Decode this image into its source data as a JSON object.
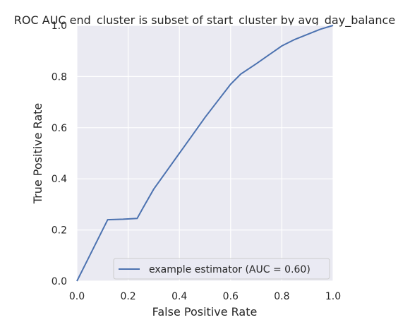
{
  "chart_data": {
    "type": "line",
    "title": "ROC AUC end_cluster is subset of start_cluster by avg_day_balance",
    "xlabel": "False Positive Rate",
    "ylabel": "True Positive Rate",
    "xlim": [
      0.0,
      1.0
    ],
    "ylim": [
      0.0,
      1.0
    ],
    "xticks": [
      "0.0",
      "0.2",
      "0.4",
      "0.6",
      "0.8",
      "1.0"
    ],
    "yticks": [
      "0.0",
      "0.2",
      "0.4",
      "0.6",
      "0.8",
      "1.0"
    ],
    "grid": true,
    "legend_position": "lower-right",
    "colors": {
      "background": "#eaeaf2",
      "grid": "#ffffff",
      "line": "#4c72b0"
    },
    "series": [
      {
        "name": "example estimator (AUC = 0.60)",
        "x": [
          0.0,
          0.03,
          0.06,
          0.09,
          0.12,
          0.18,
          0.235,
          0.26,
          0.3,
          0.35,
          0.4,
          0.45,
          0.5,
          0.55,
          0.6,
          0.64,
          0.7,
          0.75,
          0.8,
          0.85,
          0.9,
          0.95,
          1.0
        ],
        "y": [
          0.0,
          0.06,
          0.12,
          0.18,
          0.24,
          0.242,
          0.245,
          0.29,
          0.36,
          0.43,
          0.5,
          0.57,
          0.64,
          0.705,
          0.77,
          0.81,
          0.85,
          0.885,
          0.92,
          0.945,
          0.965,
          0.985,
          1.0
        ]
      }
    ]
  }
}
